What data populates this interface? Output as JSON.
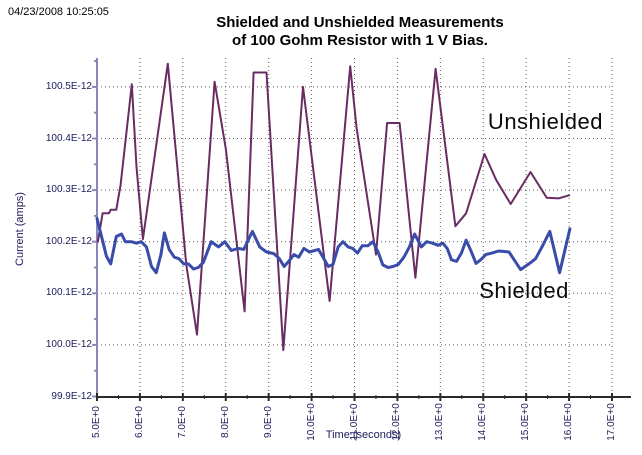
{
  "timestamp": "04/23/2008 10:25:05",
  "title": {
    "line1": "Shielded and Unshielded Measurements",
    "line2": "of 100 Gohm Resistor with 1 V Bias."
  },
  "chart_data": {
    "type": "line",
    "title": "Shielded and Unshielded Measurements of 100 Gohm Resistor with 1 V Bias.",
    "xlabel": "Time (seconds)",
    "ylabel": "Current (amps)",
    "grid": "dotted",
    "legend_position": "none (inline text annotations)",
    "xlim": [
      5.0,
      17.45
    ],
    "ylim_E-12": [
      99.9,
      100.55
    ],
    "y_values_scale": "E-12 amps",
    "x_ticks": {
      "values": [
        5,
        6,
        7,
        8,
        9,
        10,
        11,
        12,
        13,
        14,
        15,
        16,
        17
      ],
      "labels": [
        "5.0E+0",
        "6.0E+0",
        "7.0E+0",
        "8.0E+0",
        "9.0E+0",
        "10.0E+0",
        "11.0E+0",
        "12.0E+0",
        "13.0E+0",
        "14.0E+0",
        "15.0E+0",
        "16.0E+0",
        "17.0E+0"
      ]
    },
    "y_ticks": {
      "values": [
        99.9,
        100.0,
        100.1,
        100.2,
        100.3,
        100.4,
        100.5
      ],
      "labels": [
        "99.9E-12",
        "100.0E-12",
        "100.1E-12",
        "100.2E-12",
        "100.3E-12",
        "100.4E-12",
        "100.5E-12"
      ]
    },
    "series": [
      {
        "name": "Unshielded",
        "color": "#692b63",
        "width": 2,
        "points": [
          [
            5.02,
            100.2
          ],
          [
            5.13,
            100.255
          ],
          [
            5.28,
            100.255
          ],
          [
            5.32,
            100.262
          ],
          [
            5.45,
            100.262
          ],
          [
            5.55,
            100.31
          ],
          [
            5.81,
            100.505
          ],
          [
            5.92,
            100.345
          ],
          [
            6.07,
            100.205
          ],
          [
            6.65,
            100.545
          ],
          [
            7.08,
            100.155
          ],
          [
            7.33,
            100.02
          ],
          [
            7.74,
            100.51
          ],
          [
            8.0,
            100.38
          ],
          [
            8.44,
            100.065
          ],
          [
            8.65,
            100.528
          ],
          [
            8.95,
            100.528
          ],
          [
            9.34,
            99.99
          ],
          [
            9.8,
            100.5
          ],
          [
            10.42,
            100.085
          ],
          [
            10.9,
            100.54
          ],
          [
            11.05,
            100.42
          ],
          [
            11.5,
            100.175
          ],
          [
            11.76,
            100.43
          ],
          [
            12.05,
            100.43
          ],
          [
            12.42,
            100.13
          ],
          [
            12.89,
            100.535
          ],
          [
            13.35,
            100.23
          ],
          [
            13.6,
            100.255
          ],
          [
            14.03,
            100.37
          ],
          [
            14.3,
            100.32
          ],
          [
            14.64,
            100.273
          ],
          [
            15.1,
            100.335
          ],
          [
            15.48,
            100.285
          ],
          [
            15.75,
            100.284
          ],
          [
            16.0,
            100.29
          ]
        ]
      },
      {
        "name": "Shielded",
        "color": "#3a4caa",
        "width": 3,
        "points": [
          [
            5.0,
            100.245
          ],
          [
            5.12,
            100.205
          ],
          [
            5.22,
            100.172
          ],
          [
            5.32,
            100.157
          ],
          [
            5.45,
            100.21
          ],
          [
            5.57,
            100.215
          ],
          [
            5.66,
            100.2
          ],
          [
            5.8,
            100.2
          ],
          [
            5.92,
            100.197
          ],
          [
            6.03,
            100.2
          ],
          [
            6.15,
            100.19
          ],
          [
            6.27,
            100.152
          ],
          [
            6.38,
            100.14
          ],
          [
            6.49,
            100.175
          ],
          [
            6.57,
            100.217
          ],
          [
            6.68,
            100.185
          ],
          [
            6.8,
            100.17
          ],
          [
            6.91,
            100.167
          ],
          [
            7.02,
            100.157
          ],
          [
            7.13,
            100.157
          ],
          [
            7.25,
            100.147
          ],
          [
            7.36,
            100.15
          ],
          [
            7.48,
            100.16
          ],
          [
            7.66,
            100.2
          ],
          [
            7.83,
            100.19
          ],
          [
            7.98,
            100.2
          ],
          [
            8.13,
            100.183
          ],
          [
            8.28,
            100.187
          ],
          [
            8.42,
            100.185
          ],
          [
            8.62,
            100.22
          ],
          [
            8.79,
            100.19
          ],
          [
            8.95,
            100.18
          ],
          [
            9.12,
            100.177
          ],
          [
            9.24,
            100.168
          ],
          [
            9.36,
            100.152
          ],
          [
            9.47,
            100.162
          ],
          [
            9.59,
            100.175
          ],
          [
            9.7,
            100.17
          ],
          [
            9.82,
            100.187
          ],
          [
            9.95,
            100.18
          ],
          [
            10.16,
            100.185
          ],
          [
            10.28,
            100.168
          ],
          [
            10.39,
            100.152
          ],
          [
            10.5,
            100.156
          ],
          [
            10.62,
            100.19
          ],
          [
            10.73,
            100.2
          ],
          [
            10.85,
            100.19
          ],
          [
            10.96,
            100.187
          ],
          [
            11.07,
            100.178
          ],
          [
            11.18,
            100.192
          ],
          [
            11.31,
            100.192
          ],
          [
            11.43,
            100.2
          ],
          [
            11.55,
            100.18
          ],
          [
            11.66,
            100.155
          ],
          [
            11.78,
            100.15
          ],
          [
            11.9,
            100.152
          ],
          [
            12.02,
            100.156
          ],
          [
            12.15,
            100.17
          ],
          [
            12.28,
            100.19
          ],
          [
            12.4,
            100.215
          ],
          [
            12.56,
            100.19
          ],
          [
            12.68,
            100.2
          ],
          [
            12.82,
            100.197
          ],
          [
            12.95,
            100.193
          ],
          [
            13.06,
            100.197
          ],
          [
            13.16,
            100.187
          ],
          [
            13.26,
            100.165
          ],
          [
            13.38,
            100.162
          ],
          [
            13.49,
            100.178
          ],
          [
            13.6,
            100.203
          ],
          [
            13.71,
            100.183
          ],
          [
            13.83,
            100.158
          ],
          [
            13.94,
            100.165
          ],
          [
            14.06,
            100.175
          ],
          [
            14.2,
            100.178
          ],
          [
            14.36,
            100.182
          ],
          [
            14.6,
            100.18
          ],
          [
            14.87,
            100.146
          ],
          [
            15.08,
            100.158
          ],
          [
            15.22,
            100.167
          ],
          [
            15.37,
            100.19
          ],
          [
            15.55,
            100.22
          ],
          [
            15.78,
            100.14
          ],
          [
            16.02,
            100.225
          ]
        ]
      }
    ],
    "annotations": [
      {
        "label": "Unshielded",
        "t": 15.45,
        "i": 100.432
      },
      {
        "label": "Shielded",
        "t": 14.95,
        "i": 100.104
      }
    ]
  },
  "colors": {
    "background": "#ffffff",
    "grid": "#606060",
    "y_axis_line": "#8787b8",
    "x_axis_line": "#2a2a2a",
    "tick_text": "#20205e",
    "title_text": "#000000"
  }
}
